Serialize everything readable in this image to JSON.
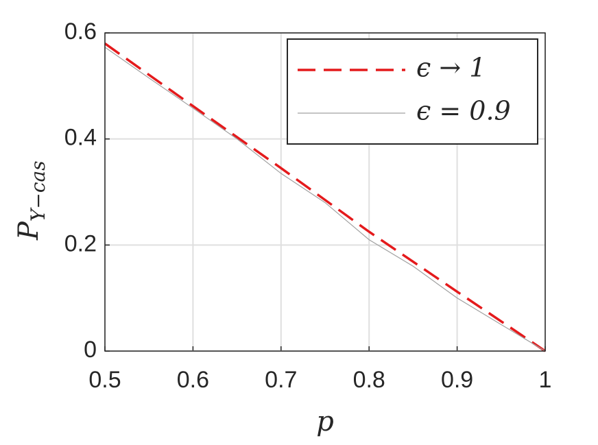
{
  "chart_data": {
    "type": "line",
    "x_label": "p",
    "y_label": "P",
    "y_label_sub": "Y−cas",
    "xlim": [
      0.5,
      1
    ],
    "xticks": [
      0.5,
      0.6,
      0.7,
      0.8,
      0.9,
      1
    ],
    "ylim": [
      0,
      0.6
    ],
    "yticks": [
      0,
      0.2,
      0.4,
      0.6
    ],
    "grid": true,
    "legend": "northeast",
    "series": [
      {
        "name": "ϵ → 1",
        "color": "#e41a1c",
        "style": "dashed",
        "x": [
          0.5,
          0.6,
          0.7,
          0.8,
          0.9,
          1
        ],
        "values": [
          0.58,
          0.462,
          0.345,
          0.225,
          0.112,
          0
        ]
      },
      {
        "name": "ϵ = 0.9",
        "color": "#a0a0a0",
        "style": "solid",
        "x": [
          0.5,
          0.55,
          0.6,
          0.65,
          0.7,
          0.75,
          0.8,
          0.85,
          0.9,
          0.95,
          1
        ],
        "values": [
          0.573,
          0.515,
          0.458,
          0.4,
          0.335,
          0.28,
          0.21,
          0.16,
          0.1,
          0.05,
          0
        ]
      }
    ]
  }
}
